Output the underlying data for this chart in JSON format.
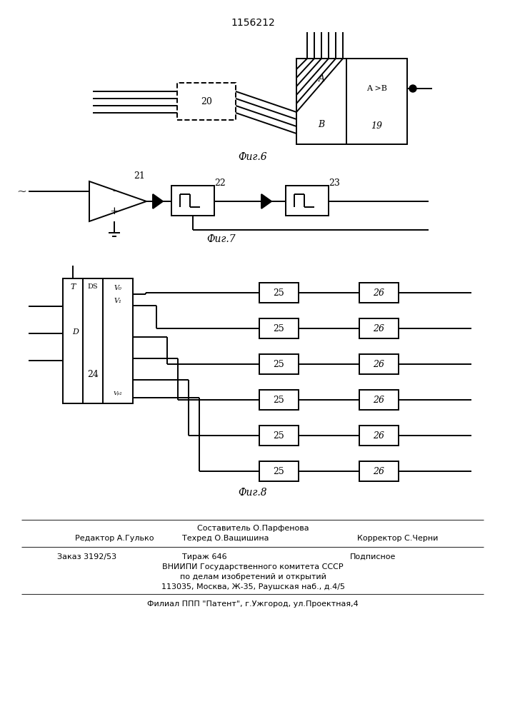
{
  "title": "1156212",
  "fig6_label": "Фиг.6",
  "fig7_label": "Фиг.7",
  "fig8_label": "Фиг.8",
  "footer_sestavitel": "Составитель О.Парфенова",
  "footer_redaktor": "Редактор А.Гулько",
  "footer_tehred": "Техред О.Ващишина",
  "footer_korrektor": "Корректор С.Черни",
  "footer_zakaz": "Заказ 3192/53",
  "footer_tirazh": "Тираж 646",
  "footer_podpisnoe": "Подписное",
  "footer_vnipi1": "ВНИИПИ Государственного комитета СССР",
  "footer_vnipi2": "по делам изобретений и открытий",
  "footer_vnipi3": "113035, Москва, Ж-35, Раушская наб., д.4/5",
  "footer_filial": "Филиал ППП \"Патент\", г.Ужгород, ул.Проектная,4",
  "bg_color": "#ffffff",
  "line_color": "#000000"
}
